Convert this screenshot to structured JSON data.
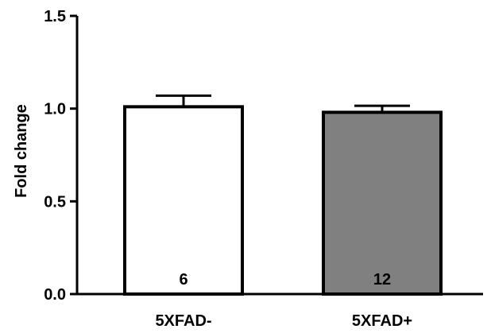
{
  "chart_data": {
    "type": "bar",
    "title": "",
    "xlabel": "",
    "ylabel": "Fold change",
    "ylim": [
      0,
      1.5
    ],
    "yticks": [
      "0.0",
      "0.5",
      "1.0",
      "1.5"
    ],
    "categories": [
      "5XFAD-",
      "5XFAD+"
    ],
    "values": [
      1.01,
      0.98
    ],
    "errors": [
      0.06,
      0.035
    ],
    "bar_labels": [
      "6",
      "12"
    ],
    "bar_colors": [
      "#ffffff",
      "#808080"
    ],
    "grid": false,
    "legend": false
  }
}
